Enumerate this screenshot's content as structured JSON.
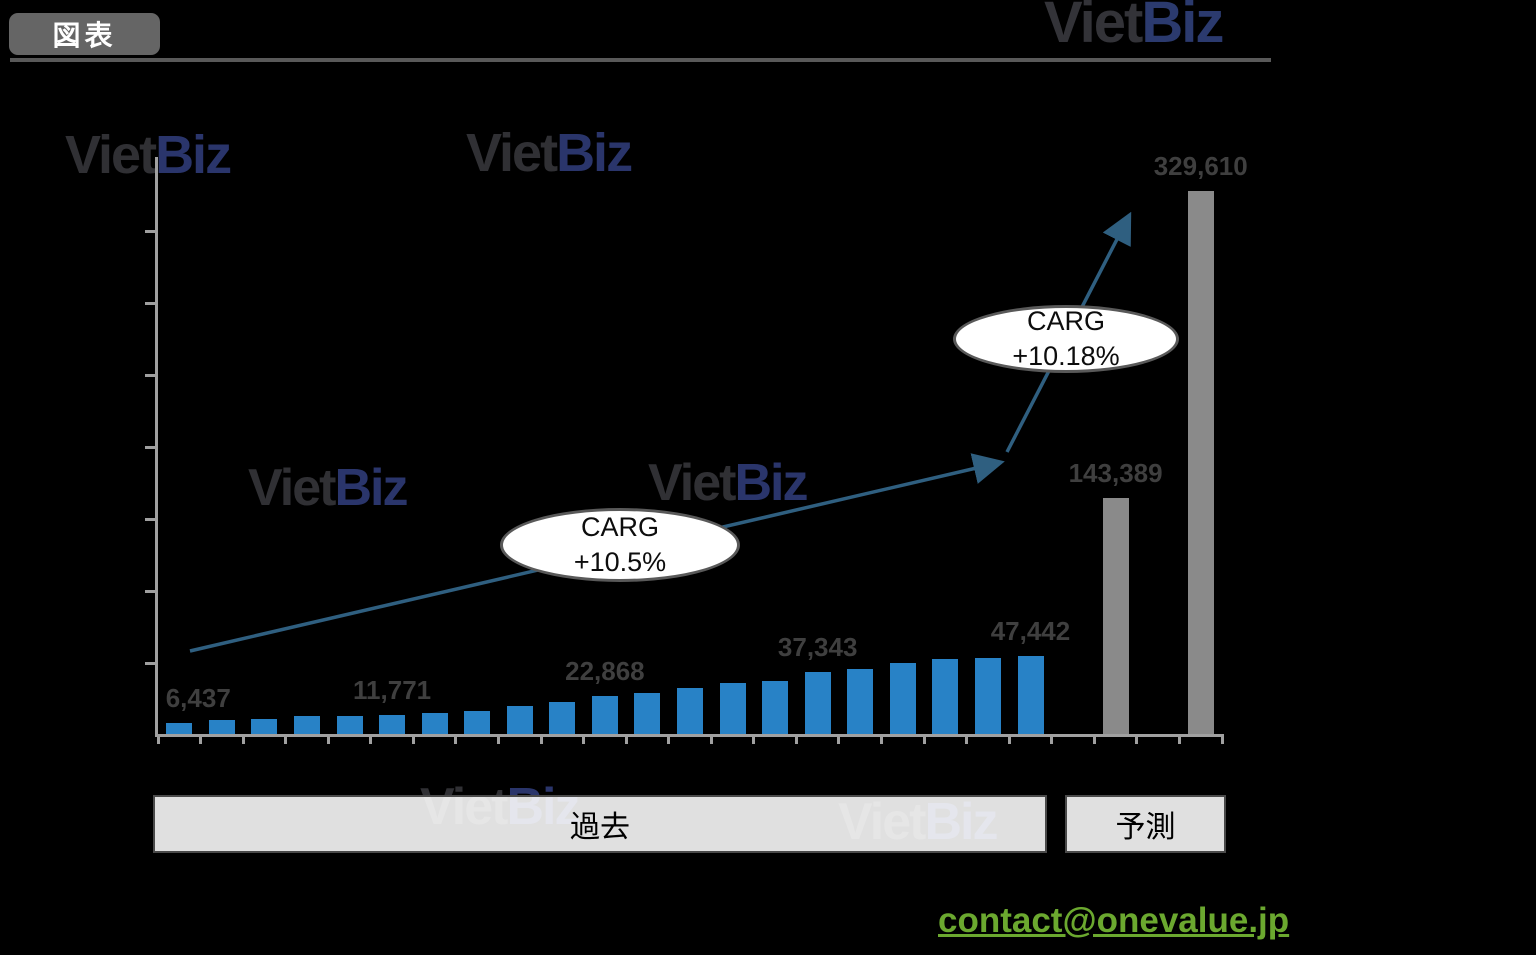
{
  "header": {
    "tag_label": "図表",
    "logo": {
      "part1": "Viet",
      "part2": "Biz"
    }
  },
  "watermark": {
    "part1": "Viet",
    "part2": "Biz"
  },
  "chart_data": {
    "type": "bar",
    "title": "",
    "xlabel": "",
    "ylabel": "",
    "ylim": [
      0,
      350000
    ],
    "gridlines": false,
    "legend": "none",
    "axis_color": "#A0A0A0",
    "label_color": "#3F3F3F",
    "series": [
      {
        "name": "historical",
        "color": "#2882C6",
        "start_slot": 0,
        "values": [
          6437,
          8300,
          9050,
          10750,
          10900,
          11771,
          12700,
          13900,
          16800,
          19300,
          22868,
          24800,
          27800,
          31200,
          32100,
          37343,
          39700,
          42800,
          45600,
          46400,
          47442
        ]
      },
      {
        "name": "forecast",
        "color": "#8A8A8A",
        "slots": [
          22,
          24
        ],
        "values": [
          143389,
          329610
        ]
      }
    ],
    "data_labels": [
      {
        "slot": 0,
        "text": "6,437",
        "dx": 19
      },
      {
        "slot": 5,
        "text": "11,771",
        "dx": 0
      },
      {
        "slot": 10,
        "text": "22,868",
        "dx": 0
      },
      {
        "slot": 15,
        "text": "37,343",
        "dx": 0
      },
      {
        "slot": 20,
        "text": "47,442",
        "dx": 0
      },
      {
        "slot": 22,
        "text": "143,389",
        "dx": 0
      },
      {
        "slot": 24,
        "text": "329,610",
        "dx": 0
      }
    ],
    "annotations": [
      {
        "line1": "CARG",
        "line2": "+10.5%"
      },
      {
        "line1": "CARG",
        "line2": "+10.18%"
      }
    ],
    "arrow_color": "#2F5F80"
  },
  "sections": {
    "past_label": "過去",
    "forecast_label": "予測"
  },
  "footer": {
    "email": "contact@onevalue.jp"
  }
}
